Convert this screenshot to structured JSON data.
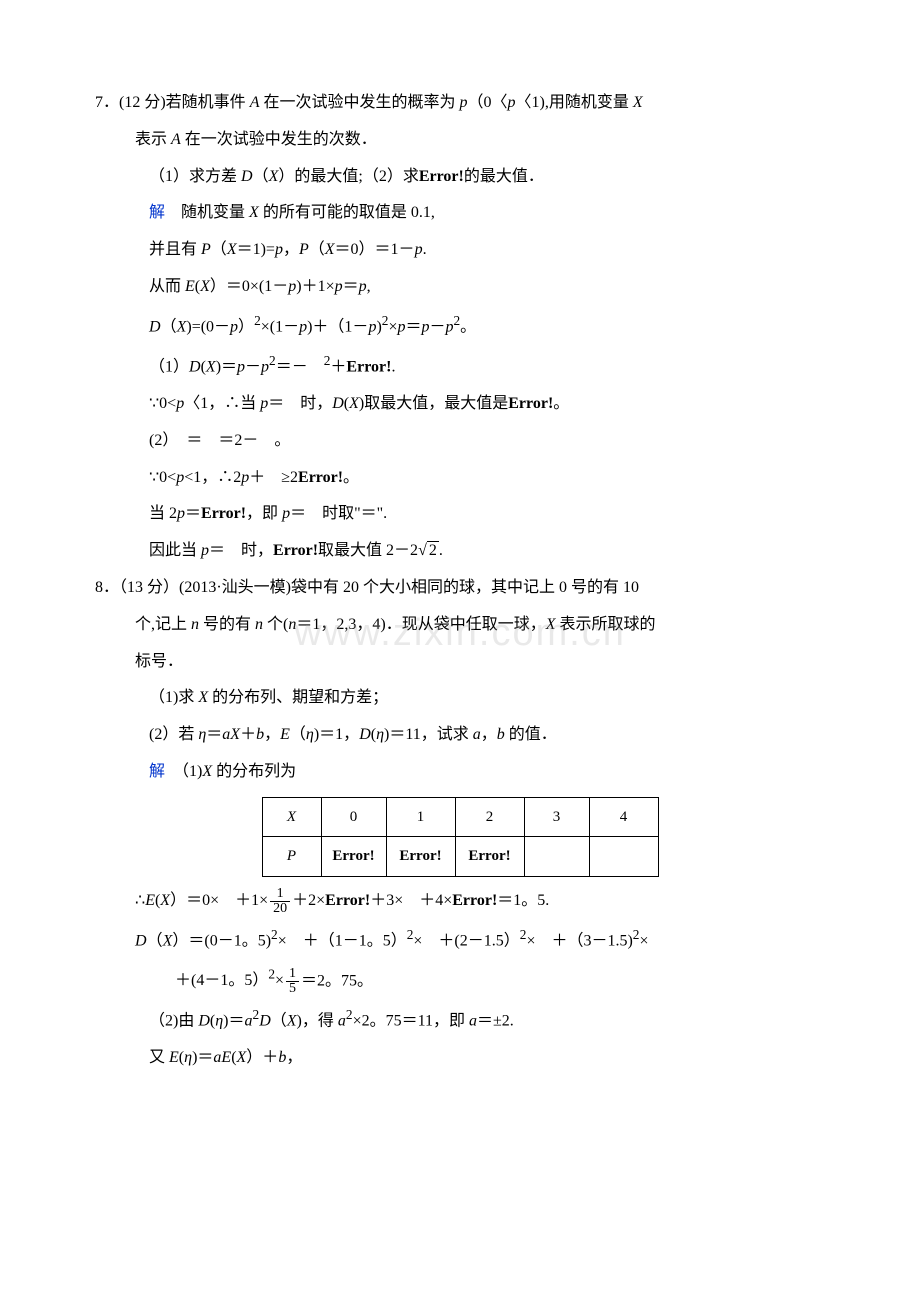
{
  "watermark": "www.zixin.com.cn",
  "q7": {
    "num": "7．",
    "stem": "(12 分)若随机事件 <span class='ital'>A</span> 在一次试验中发生的概率为 <span class='ital'>p</span>（0〈<span class='ital'>p</span>〈1),用随机变量 <span class='ital'>X</span>",
    "stem2": "表示 <span class='ital'>A</span> 在一次试验中发生的次数．",
    "part1": "（1）求方差 <span class='ital'>D</span>（<span class='ital'>X</span>）的最大值;（2）求<span class='bold'>Error!</span>的最大值．",
    "sol_label": "解",
    "sol1": "　随机变量 <span class='ital'>X</span> 的所有可能的取值是 0.1,",
    "sol2": "并且有 <span class='ital'>P</span>（<span class='ital'>X</span>＝1)=<span class='ital'>p</span>，<span class='ital'>P</span>（<span class='ital'>X</span>＝0）＝1－<span class='ital'>p</span>.",
    "sol3": "从而 <span class='ital'>E</span>(<span class='ital'>X</span>）＝0×(1－<span class='ital'>p</span>)＋1×<span class='ital'>p</span>＝<span class='ital'>p</span>,",
    "sol4": "<span class='ital'>D</span>（<span class='ital'>X</span>)=(0－<span class='ital'>p</span>）<sup>2</sup>×(1－<span class='ital'>p</span>)＋（1－<span class='ital'>p</span>)<sup>2</sup>×<span class='ital'>p</span>＝<span class='ital'>p</span>－<span class='ital'>p</span><sup>2</sup>。",
    "sol5": "（1）<span class='ital'>D</span>(<span class='ital'>X</span>)＝<span class='ital'>p</span>－<span class='ital'>p</span><sup>2</sup>＝－　<sup>2</sup>＋<span class='bold'>Error!</span>.",
    "sol6": "∵0&lt;<span class='ital'>p</span>〈1，∴当 <span class='ital'>p</span>＝　时，<span class='ital'>D</span>(<span class='ital'>X</span>)取最大值，最大值是<span class='bold'>Error!</span>。",
    "sol7": "(2）　＝　＝2－　。",
    "sol8": "∵0&lt;<span class='ital'>p</span>&lt;1，∴2<span class='ital'>p</span>＋　≥2<span class='bold'>Error!</span>。",
    "sol9": "当 2<span class='ital'>p</span>＝<span class='bold'>Error!</span>，即 <span class='ital'>p</span>＝　时取\"＝\".",
    "sol10_pre": "因此当 <span class='ital'>p</span>＝　时，<span class='bold'>Error!</span>取最大值 2－2",
    "sol10_radicand": "2",
    "sol10_post": "."
  },
  "q8": {
    "num": "8．",
    "stem": "（13 分）(2013·汕头一模)袋中有 20 个大小相同的球，其中记上 0 号的有 10",
    "stem2": "个,记上 <span class='ital'>n</span> 号的有 <span class='ital'>n</span> 个(<span class='ital'>n</span>＝1，2,3，4)．现从袋中任取一球，<span class='ital'>X</span> 表示所取球的",
    "stem3": "标号．",
    "part1": "（1)求 <span class='ital'>X</span> 的分布列、期望和方差；",
    "part2": "(2）若 <span class='ital'>η</span>＝<span class='ital'>aX</span>＋<span class='ital'>b</span>，<span class='ital'>E</span>（<span class='ital'>η</span>)＝1，<span class='ital'>D</span>(<span class='ital'>η</span>)＝11，试求 <span class='ital'>a</span>，<span class='ital'>b</span> 的值．",
    "sol_label": "解",
    "sol1": "　（1)<span class='ital'>X</span> 的分布列为",
    "table": {
      "h": [
        "X",
        "0",
        "1",
        "2",
        "3",
        "4"
      ],
      "p": [
        "P",
        "Error!",
        "Error!",
        "Error!",
        "",
        ""
      ]
    },
    "ex_pre": "∴<span class='ital'>E</span>(<span class='ital'>X</span>）＝0×　＋1×",
    "ex_frac_num": "1",
    "ex_frac_den": "20",
    "ex_mid": "＋2×<span class='bold'>Error!</span>＋3×　＋4×<span class='bold'>Error!</span>＝1。5.",
    "dx1": "<span class='ital'>D</span>（<span class='ital'>X</span>）＝(0－1。5)<sup>2</sup>×　＋（1－1。5）<sup>2</sup>×　＋(2－1.5）<sup>2</sup>×　＋（3－1.5)<sup>2</sup>×",
    "dx2_pre": "＋(4－1。5）<sup>2</sup>×",
    "dx2_num": "1",
    "dx2_den": "5",
    "dx2_post": "＝2。75。",
    "p2a": "（2)由 <span class='ital'>D</span>(<span class='ital'>η</span>)＝<span class='ital'>a</span><sup>2</sup><span class='ital'>D</span>（<span class='ital'>X</span>)，得 <span class='ital'>a</span><sup>2</sup>×2。75＝11，即 <span class='ital'>a</span>＝±2.",
    "p2b": "又 <span class='ital'>E</span>(<span class='ital'>η</span>)＝<span class='ital'>aE</span>(<span class='ital'>X</span>）＋<span class='ital'>b</span>，"
  }
}
